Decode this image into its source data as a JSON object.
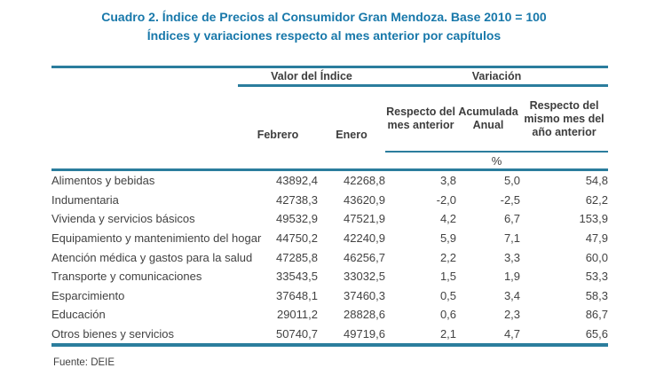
{
  "title": {
    "line1": "Cuadro 2. Índice de Precios al Consumidor Gran Mendoza. Base 2010 = 100",
    "line2": "Índices y variaciones respecto al mes anterior por capítulos"
  },
  "table": {
    "group_headers": {
      "value_label": "Valor del Índice",
      "variation_label": "Variación"
    },
    "columns": [
      "Febrero",
      "Enero",
      "Respecto del mes anterior",
      "Acumulada Anual",
      "Respecto del mismo mes del año anterior"
    ],
    "unit_label": "%",
    "rows": [
      {
        "label": "Alimentos y bebidas",
        "values": [
          "43892,4",
          "42268,8",
          "3,8",
          "5,0",
          "54,8"
        ]
      },
      {
        "label": "Indumentaria",
        "values": [
          "42738,3",
          "43620,9",
          "-2,0",
          "-2,5",
          "62,2"
        ]
      },
      {
        "label": "Vivienda y servicios básicos",
        "values": [
          "49532,9",
          "47521,9",
          "4,2",
          "6,7",
          "153,9"
        ]
      },
      {
        "label": "Equipamiento y mantenimiento del hogar",
        "values": [
          "44750,2",
          "42240,9",
          "5,9",
          "7,1",
          "47,9"
        ]
      },
      {
        "label": "Atención médica y gastos para la salud",
        "values": [
          "47285,8",
          "46256,7",
          "2,2",
          "3,3",
          "60,0"
        ]
      },
      {
        "label": "Transporte y comunicaciones",
        "values": [
          "33543,5",
          "33032,5",
          "1,5",
          "1,9",
          "53,3"
        ]
      },
      {
        "label": "Esparcimiento",
        "values": [
          "37648,1",
          "37460,3",
          "0,5",
          "3,4",
          "58,3"
        ]
      },
      {
        "label": "Educación",
        "values": [
          "29011,2",
          "28828,6",
          "0,6",
          "2,3",
          "86,7"
        ]
      },
      {
        "label": "Otros bienes y servicios",
        "values": [
          "50740,7",
          "49719,6",
          "2,1",
          "4,7",
          "65,6"
        ]
      }
    ]
  },
  "footer": {
    "source": "Fuente: DEIE"
  },
  "colors": {
    "title_accent": "#1878aa",
    "rule_accent": "#2b7d9d",
    "text": "#424242"
  }
}
